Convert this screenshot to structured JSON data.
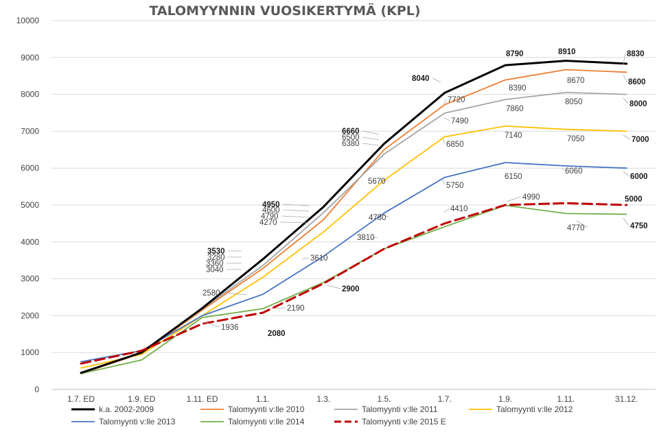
{
  "chart_data": {
    "type": "line",
    "title": "TALOMYYNNIN VUOSIKERTYMÄ (KPL)",
    "categories": [
      "1.7.  ED",
      "1.9.  ED",
      "1.11. ED",
      "1.1.",
      "1.3.",
      "1.5.",
      "1.7.",
      "1.9.",
      "1.11.",
      "31.12."
    ],
    "ylim": [
      0,
      10000
    ],
    "yticks": [
      0,
      1000,
      2000,
      3000,
      4000,
      5000,
      6000,
      7000,
      8000,
      9000,
      10000
    ],
    "grid": true,
    "legend_position": "bottom",
    "series": [
      {
        "name": "k.a. 2002-2009",
        "color": "#000000",
        "dash": "solid",
        "width": 3,
        "values": [
          450,
          1000,
          2200,
          3530,
          4950,
          6660,
          8040,
          8790,
          8910,
          8830
        ]
      },
      {
        "name": "Talomyynti v:lle 2010",
        "color": "#ED7D31",
        "dash": "solid",
        "width": 1.8,
        "values": [
          430,
          980,
          2150,
          3280,
          4600,
          6500,
          7720,
          8390,
          8670,
          8600
        ]
      },
      {
        "name": "Talomyynti v:lle  2011",
        "color": "#A5A5A5",
        "dash": "solid",
        "width": 1.8,
        "values": [
          440,
          990,
          2180,
          3360,
          4790,
          6380,
          7490,
          7860,
          8050,
          8000
        ]
      },
      {
        "name": "Talomyynti v:lle  2012",
        "color": "#FFC000",
        "dash": "solid",
        "width": 1.8,
        "values": [
          580,
          950,
          2000,
          3040,
          4270,
          5670,
          6850,
          7140,
          7050,
          7000
        ]
      },
      {
        "name": "Talomyynti v:lle  2013",
        "color": "#4472C4",
        "dash": "solid",
        "width": 1.8,
        "values": [
          750,
          1050,
          2000,
          2580,
          3610,
          4780,
          5750,
          6150,
          6060,
          6000
        ]
      },
      {
        "name": "Talomyynti v:lle  2014",
        "color": "#70AD47",
        "dash": "solid",
        "width": 1.8,
        "values": [
          430,
          800,
          1950,
          2190,
          2900,
          3810,
          4410,
          4990,
          4770,
          4750
        ]
      },
      {
        "name": "Talomyynti v:lle 2015 E",
        "color": "#C00000",
        "dash": "dashed",
        "width": 3,
        "values": [
          700,
          1050,
          1780,
          2080,
          2870,
          3810,
          4500,
          5000,
          5050,
          5000
        ]
      }
    ],
    "annotations": [
      {
        "text": "1936"
      },
      {
        "text": "2080"
      },
      {
        "text": "2190"
      },
      {
        "text": "2580"
      },
      {
        "text": "2900"
      },
      {
        "text": "3040"
      },
      {
        "text": "3360"
      },
      {
        "text": "3280"
      },
      {
        "text": "3530"
      },
      {
        "text": "3610"
      },
      {
        "text": "3810"
      },
      {
        "text": "4270"
      },
      {
        "text": "4790"
      },
      {
        "text": "4600"
      },
      {
        "text": "4950"
      },
      {
        "text": "4780"
      },
      {
        "text": "4410"
      },
      {
        "text": "5670"
      },
      {
        "text": "5750"
      },
      {
        "text": "6380"
      },
      {
        "text": "6500"
      },
      {
        "text": "6660"
      },
      {
        "text": "6850"
      },
      {
        "text": "7490"
      },
      {
        "text": "7720"
      },
      {
        "text": "8040"
      },
      {
        "text": "4990"
      },
      {
        "text": "6150"
      },
      {
        "text": "7140"
      },
      {
        "text": "7860"
      },
      {
        "text": "8390"
      },
      {
        "text": "8790"
      },
      {
        "text": "4770"
      },
      {
        "text": "6060"
      },
      {
        "text": "7050"
      },
      {
        "text": "8050"
      },
      {
        "text": "8670"
      },
      {
        "text": "8910"
      },
      {
        "text": "4750"
      },
      {
        "text": "5000"
      },
      {
        "text": "6000"
      },
      {
        "text": "7000"
      },
      {
        "text": "8000"
      },
      {
        "text": "8600"
      },
      {
        "text": "8830"
      }
    ]
  }
}
